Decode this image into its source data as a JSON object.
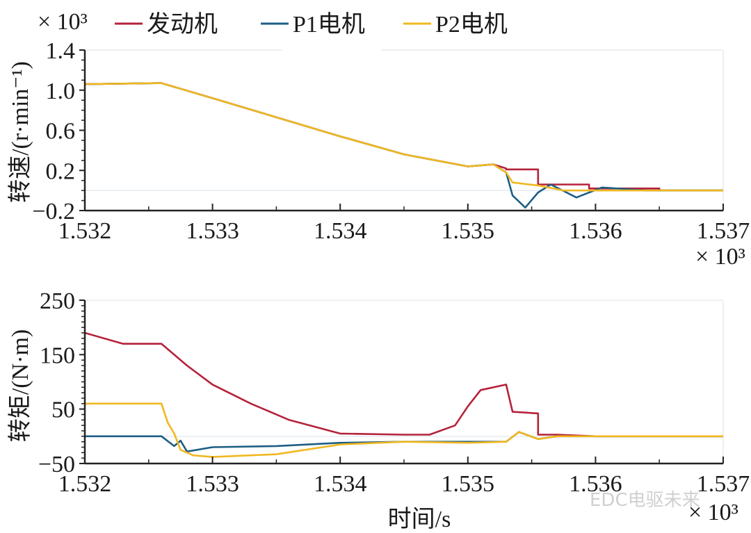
{
  "legend": {
    "multiplier": "× 10³",
    "items": [
      {
        "label": "发动机",
        "color": "#b5223a"
      },
      {
        "label": "P1电机",
        "color": "#1d5e84"
      },
      {
        "label": "P2电机",
        "color": "#f0b820"
      }
    ]
  },
  "top_chart": {
    "ylabel": "转速/(r·min⁻¹)",
    "yticks": [
      "1.4",
      "1.0",
      "0.6",
      "0.2",
      "−0.2"
    ],
    "xticks": [
      "1.532",
      "1.533",
      "1.534",
      "1.535",
      "1.536",
      "1.537"
    ],
    "x_multiplier": "× 10³"
  },
  "bottom_chart": {
    "ylabel": "转矩/(N·m)",
    "yticks": [
      "250",
      "150",
      "50",
      "−50"
    ],
    "xticks": [
      "1.532",
      "1.533",
      "1.534",
      "1.535",
      "1.536",
      "1.537"
    ],
    "x_multiplier": "× 10³",
    "xlabel": "时间/s"
  },
  "watermark": "EDC电驱未来",
  "chart_data": [
    {
      "type": "line",
      "title": "",
      "xlabel": "",
      "ylabel": "转速/(r·min⁻¹) ×10³",
      "xlim": [
        1532,
        1537
      ],
      "ylim": [
        -0.2,
        1.4
      ],
      "x_scale_note": "x in s (tick labels ×10³)",
      "series": [
        {
          "name": "发动机",
          "color": "#b5223a",
          "x": [
            1532,
            1532.6,
            1533.0,
            1533.5,
            1534.0,
            1534.5,
            1535.0,
            1535.2,
            1535.3,
            1535.3,
            1535.55,
            1535.55,
            1535.95,
            1535.95,
            1536.5,
            1536.5,
            1537
          ],
          "y": [
            1.06,
            1.07,
            0.92,
            0.73,
            0.54,
            0.36,
            0.24,
            0.26,
            0.22,
            0.21,
            0.21,
            0.06,
            0.06,
            0.02,
            0.02,
            0.0,
            0.0
          ]
        },
        {
          "name": "P1电机",
          "color": "#1d5e84",
          "x": [
            1532,
            1532.6,
            1533.0,
            1533.5,
            1534.0,
            1534.5,
            1535.0,
            1535.2,
            1535.3,
            1535.35,
            1535.45,
            1535.55,
            1535.65,
            1535.85,
            1536.05,
            1536.4,
            1537
          ],
          "y": [
            1.06,
            1.07,
            0.92,
            0.73,
            0.54,
            0.36,
            0.24,
            0.26,
            0.18,
            -0.05,
            -0.17,
            -0.02,
            0.06,
            -0.07,
            0.03,
            0.0,
            0.0
          ]
        },
        {
          "name": "P2电机",
          "color": "#f0b820",
          "x": [
            1532,
            1532.6,
            1533.0,
            1533.5,
            1534.0,
            1534.5,
            1535.0,
            1535.2,
            1535.3,
            1535.35,
            1535.55,
            1535.75,
            1536.0,
            1536.5,
            1537
          ],
          "y": [
            1.06,
            1.07,
            0.92,
            0.73,
            0.54,
            0.36,
            0.24,
            0.26,
            0.18,
            0.08,
            0.05,
            0.0,
            0.0,
            0.0,
            0.0
          ]
        }
      ]
    },
    {
      "type": "line",
      "title": "",
      "xlabel": "时间/s",
      "ylabel": "转矩/(N·m)",
      "xlim": [
        1532,
        1537
      ],
      "ylim": [
        -50,
        250
      ],
      "x_scale_note": "x in s (tick labels ×10³)",
      "series": [
        {
          "name": "发动机",
          "color": "#b5223a",
          "x": [
            1532,
            1532.3,
            1532.6,
            1532.8,
            1533.0,
            1533.3,
            1533.6,
            1534.0,
            1534.5,
            1534.7,
            1534.9,
            1535.0,
            1535.1,
            1535.3,
            1535.35,
            1535.55,
            1535.55,
            1535.7,
            1536.0,
            1536.3,
            1537
          ],
          "y": [
            190,
            170,
            170,
            130,
            95,
            60,
            30,
            5,
            3,
            3,
            20,
            55,
            85,
            95,
            45,
            42,
            3,
            3,
            0,
            0,
            0
          ]
        },
        {
          "name": "P1电机",
          "color": "#1d5e84",
          "x": [
            1532,
            1532.6,
            1532.7,
            1532.75,
            1532.8,
            1533.0,
            1533.5,
            1534.0,
            1534.5,
            1535.0,
            1535.3,
            1535.4,
            1535.55,
            1535.7,
            1536.0,
            1537
          ],
          "y": [
            0,
            0,
            -18,
            -8,
            -28,
            -20,
            -18,
            -12,
            -10,
            -10,
            -10,
            8,
            -5,
            0,
            0,
            0
          ]
        },
        {
          "name": "P2电机",
          "color": "#f0b820",
          "x": [
            1532,
            1532.6,
            1532.65,
            1532.7,
            1532.75,
            1532.85,
            1533.0,
            1533.5,
            1534.0,
            1534.5,
            1535.0,
            1535.3,
            1535.4,
            1535.55,
            1535.7,
            1536.0,
            1537
          ],
          "y": [
            60,
            60,
            25,
            5,
            -25,
            -35,
            -38,
            -33,
            -15,
            -10,
            -12,
            -10,
            8,
            -5,
            0,
            0,
            0
          ]
        }
      ]
    }
  ]
}
